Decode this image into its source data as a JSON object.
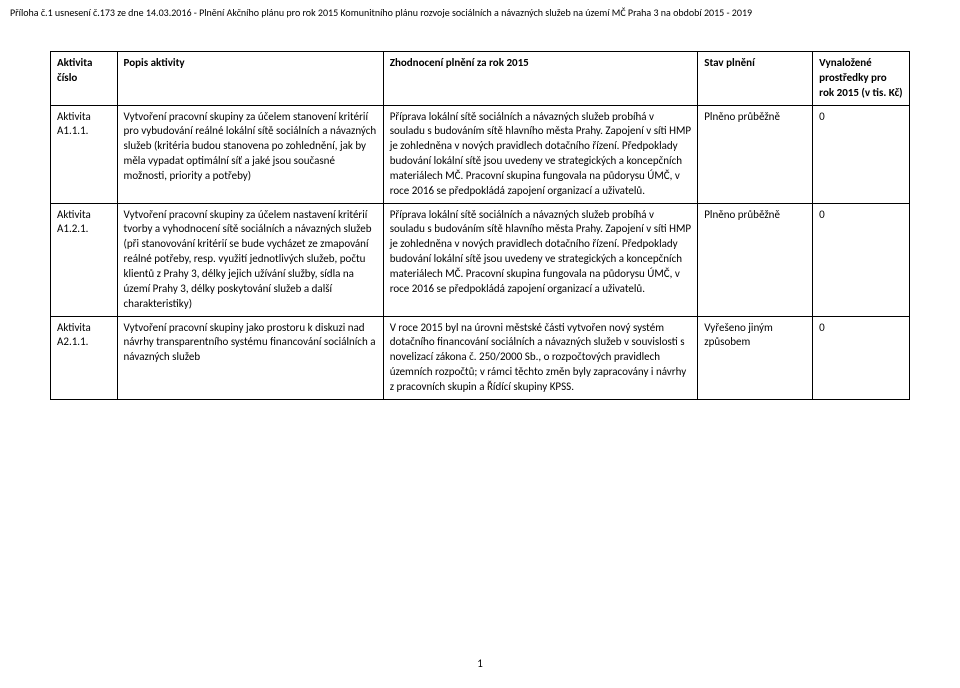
{
  "doc_header": "Příloha č.1 usnesení č.173 ze dne 14.03.2016 - Plnění Akčního plánu pro rok 2015 Komunitního plánu rozvoje sociálních a návazných služeb na území MČ Praha 3 na období 2015 - 2019",
  "page_number": "1",
  "table": {
    "headers": {
      "col1": "Aktivita číslo",
      "col2": "Popis aktivity",
      "col3": "Zhodnocení plnění za rok 2015",
      "col4": "Stav plnění",
      "col5": "Vynaložené prostředky pro rok 2015 (v tis. Kč)"
    },
    "rows": [
      {
        "id_label": "Aktivita",
        "id_code": "A1.1.1.",
        "popis": "Vytvoření pracovní skupiny za účelem stanovení kritérií pro vybudování reálné lokální sítě sociálních a návazných služeb (kritéria budou stanovena po zohlednění, jak by měla vypadat optimální síť a jaké jsou současné možnosti, priority a potřeby)",
        "zhod": "Příprava lokální sítě sociálních a návazných služeb probíhá v souladu s budováním sítě hlavního města Prahy. Zapojení v síti HMP je zohledněna v nových pravidlech dotačního řízení. Předpoklady budování lokální sítě jsou uvedeny ve strategických a koncepčních materiálech MČ. Pracovní skupina fungovala na půdorysu ÚMČ, v roce 2016 se předpokládá zapojení organizací a uživatelů.",
        "stav": "Plněno průběžně",
        "vyn": "0"
      },
      {
        "id_label": "Aktivita",
        "id_code": "A1.2.1.",
        "popis": "Vytvoření pracovní skupiny za účelem nastavení kritérií tvorby a vyhodnocení sítě sociálních a návazných služeb (při stanovování kritérií se bude vycházet ze zmapování reálné potřeby, resp. využití jednotlivých služeb, počtu klientů z Prahy 3, délky jejich užívání služby, sídla na území Prahy 3, délky poskytování služeb a další charakteristiky)",
        "zhod": "Příprava lokální sítě sociálních a návazných služeb probíhá v souladu s budováním sítě hlavního města Prahy. Zapojení v síti HMP je zohledněna v nových pravidlech dotačního řízení. Předpoklady budování lokální sítě jsou uvedeny ve strategických a koncepčních materiálech MČ. Pracovní skupina fungovala na půdorysu ÚMČ, v roce 2016 se předpokládá zapojení organizací a uživatelů.",
        "stav": "Plněno průběžně",
        "vyn": "0"
      },
      {
        "id_label": "Aktivita",
        "id_code": "A2.1.1.",
        "popis": "Vytvoření pracovní skupiny jako prostoru k diskuzi nad návrhy transparentního systému financování sociálních a návazných služeb",
        "zhod": "V roce 2015 byl na úrovni městské části vytvořen nový systém dotačního financování sociálních a návazných služeb v souvislosti s novelizací zákona č. 250/2000 Sb., o rozpočtových pravidlech územních rozpočtů; v rámci těchto změn byly zapracovány i návrhy z pracovních skupin a Řídící skupiny KPSS.",
        "stav": "Vyřešeno jiným způsobem",
        "vyn": "0"
      }
    ]
  }
}
